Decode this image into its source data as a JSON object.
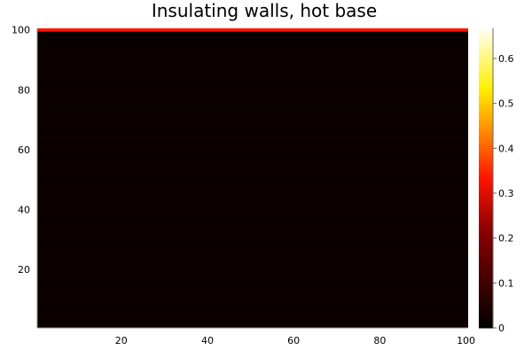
{
  "chart_data": {
    "type": "heatmap",
    "title": "Insulating walls, hot base",
    "xlabel": "",
    "ylabel": "",
    "x_range": [
      1,
      100
    ],
    "y_range": [
      1,
      100
    ],
    "x_ticks": [
      20,
      40,
      60,
      80,
      100
    ],
    "y_ticks": [
      20,
      40,
      60,
      80,
      100
    ],
    "grid": false,
    "colormap": "heat",
    "colorbar": {
      "range": [
        0,
        0.667
      ],
      "ticks": [
        0,
        0.1,
        0.2,
        0.3,
        0.4,
        0.5,
        0.6
      ],
      "tick_labels": [
        "0",
        "0.1",
        "0.2",
        "0.3",
        "0.4",
        "0.5",
        "0.6"
      ],
      "placement": "right"
    },
    "note_rows": "value of each row y=1..100, uniform across all columns x=1..100",
    "row_values": [
      0,
      0,
      0,
      0,
      0,
      0,
      0,
      0,
      0,
      0,
      0,
      0,
      0,
      0,
      0,
      0,
      0,
      0,
      0,
      0,
      0,
      0,
      0,
      0,
      0,
      0,
      0,
      0,
      0,
      0,
      0,
      0,
      0,
      0,
      0,
      0,
      0,
      0,
      0,
      0,
      0,
      0,
      0,
      0,
      0,
      0,
      0,
      0,
      0,
      0,
      0,
      0,
      0,
      0,
      0,
      0,
      0,
      0,
      0,
      0,
      0,
      0,
      0,
      0,
      0,
      0,
      0,
      0,
      0,
      0,
      0,
      0,
      0,
      0,
      0,
      0,
      0,
      0,
      0,
      0,
      0,
      0,
      0,
      0,
      0,
      0,
      0,
      0,
      0,
      0,
      0,
      0,
      0,
      0,
      0,
      0,
      0,
      0,
      0,
      0.333
    ]
  }
}
